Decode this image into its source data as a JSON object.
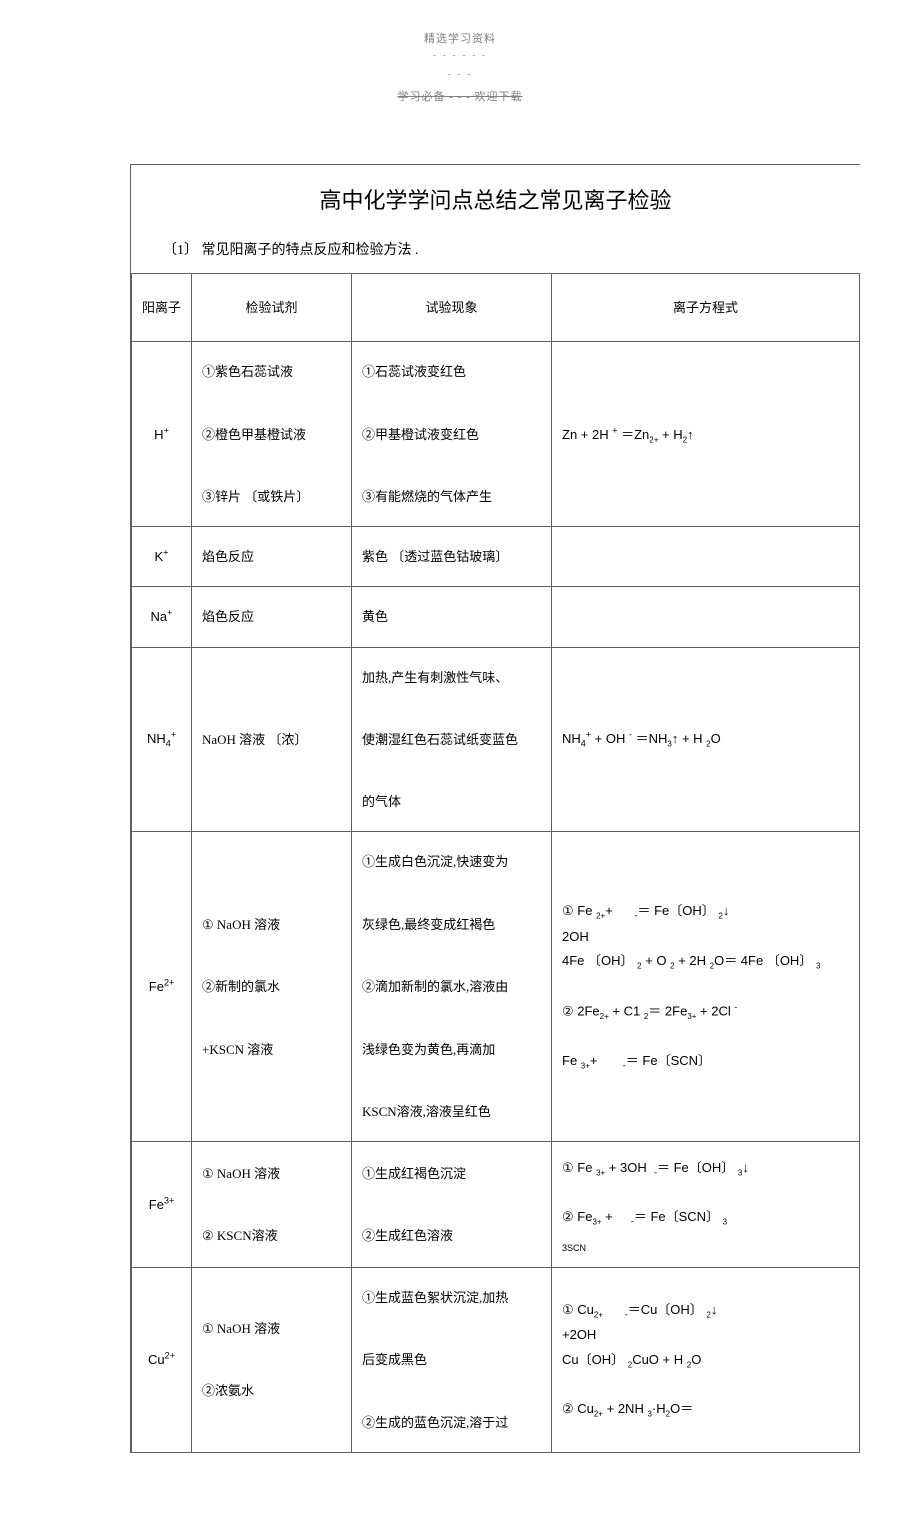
{
  "header": {
    "top": "精选学习资料",
    "dashes": "- - - - - -",
    "sub": "- - -",
    "struck": "学习必备 - - - 欢迎下载"
  },
  "title": "高中化学学问点总结之常见离子检验",
  "subtitle": "〔1〕 常见阳离子的特点反应和检验方法  .",
  "columns": {
    "c1": "阳离子",
    "c2": "检验试剂",
    "c3": "试验现象",
    "c4": "离子方程式"
  },
  "rows": {
    "h": {
      "ion_html": "H<sup>+</sup>",
      "reagent": "①紫色石蕊试液\n\n②橙色甲基橙试液\n\n③锌片 〔或铁片〕",
      "phenom": "①石蕊试液变红色\n\n②甲基橙试液变红色\n\n③有能燃烧的气体产生",
      "eq_html": "Zn + 2H <sup>+</sup> ＝Zn<sub class=\"small-sub\">2+</sub> + H<sub class=\"small-sub\">2</sub>↑"
    },
    "k": {
      "ion_html": "K<sup>+</sup>",
      "reagent": "焰色反应",
      "phenom": "紫色 〔透过蓝色钴玻璃〕",
      "eq_html": ""
    },
    "na": {
      "ion_html": "Na<sup>+</sup>",
      "reagent": "焰色反应",
      "phenom": "黄色",
      "eq_html": ""
    },
    "nh4": {
      "ion_html": "NH<sub>4</sub><sup>+</sup>",
      "reagent": "NaOH 溶液 〔浓〕",
      "phenom": " 加热,产生有刺激性气味、\n\n使潮湿红色石蕊试纸变蓝色\n\n的气体",
      "eq_html": "NH<sub>4</sub><sup>+</sup> + OH <sup>-</sup> ＝NH<sub class=\"small-sub\">3</sub>↑ + H <sub class=\"small-sub\">2</sub>O"
    },
    "fe2": {
      "ion_html": "Fe<sup>2+</sup>",
      "reagent": "① NaOH 溶液\n\n②新制的氯水\n\n+KSCN 溶液",
      "phenom": "①生成白色沉淀,快速变为\n\n灰绿色,最终变成红褐色\n\n②滴加新制的氯水,溶液由\n\n浅绿色变为黄色,再滴加\n\n KSCN溶液,溶液呈红色",
      "eq_html": "① Fe <sub class=\"small-sub\">2+</sub>+&nbsp;&nbsp;&nbsp;&nbsp;&nbsp;&nbsp;<sub>-</sub>＝ Fe〔OH〕 <sub class=\"small-sub\">2</sub>↓<br>2OH<br>4Fe 〔OH〕 <sub class=\"small-sub\">2</sub> + O <sub class=\"small-sub\">2</sub> + 2H <sub class=\"small-sub\">2</sub>O＝ 4Fe 〔OH〕 <sub class=\"small-sub\">3</sub><br><br>② 2Fe<sub class=\"small-sub\">2+</sub> + C1 <sub class=\"small-sub\">2</sub>＝ 2Fe<sub class=\"small-sub\">3+</sub> + 2Cl <sup>-</sup><br><br>Fe <sub class=\"small-sub\">3+</sub>+&nbsp;&nbsp;&nbsp;&nbsp;&nbsp;&nbsp;&nbsp;<sub>-</sub>＝ Fe〔SCN〕"
    },
    "fe3": {
      "ion_html": "Fe<sup>3+</sup>",
      "reagent": "① NaOH 溶液\n\n② KSCN溶液",
      "phenom": "①生成红褐色沉淀\n\n②生成红色溶液",
      "eq_html": "① Fe <sub class=\"small-sub\">3+</sub> + 3OH &nbsp;<sub>-</sub>＝ Fe〔OH〕 <sub class=\"small-sub\">3</sub>↓<br><br>② Fe<sub class=\"small-sub\">3+</sub> +&nbsp;&nbsp;&nbsp;&nbsp;&nbsp;<sub>-</sub>＝ Fe〔SCN〕 <sub class=\"small-sub\">3</sub><br><span style=\"font-size:9px;position:relative;top:6px\">3SCN</span>"
    },
    "cu2": {
      "ion_html": "Cu<sup>2+</sup>",
      "reagent": "① NaOH 溶液\n\n②浓氨水",
      "phenom": "①生成蓝色絮状沉淀,加热\n\n后变成黑色\n\n②生成的蓝色沉淀,溶于过",
      "eq_html": "① Cu<sub class=\"small-sub\">2+</sub>&nbsp;&nbsp;&nbsp;&nbsp;&nbsp;&nbsp;<sub>-</sub>＝Cu〔OH〕 <sub class=\"small-sub\">2</sub>↓<br>+2OH<br>Cu〔OH〕 <sub class=\"small-sub\">2</sub>CuO + H <sub class=\"small-sub\">2</sub>O<br><br>② Cu<sub class=\"small-sub\">2+</sub> + 2NH <sub class=\"small-sub\">3</sub>·H<sub class=\"small-sub\">2</sub>O＝"
    }
  }
}
